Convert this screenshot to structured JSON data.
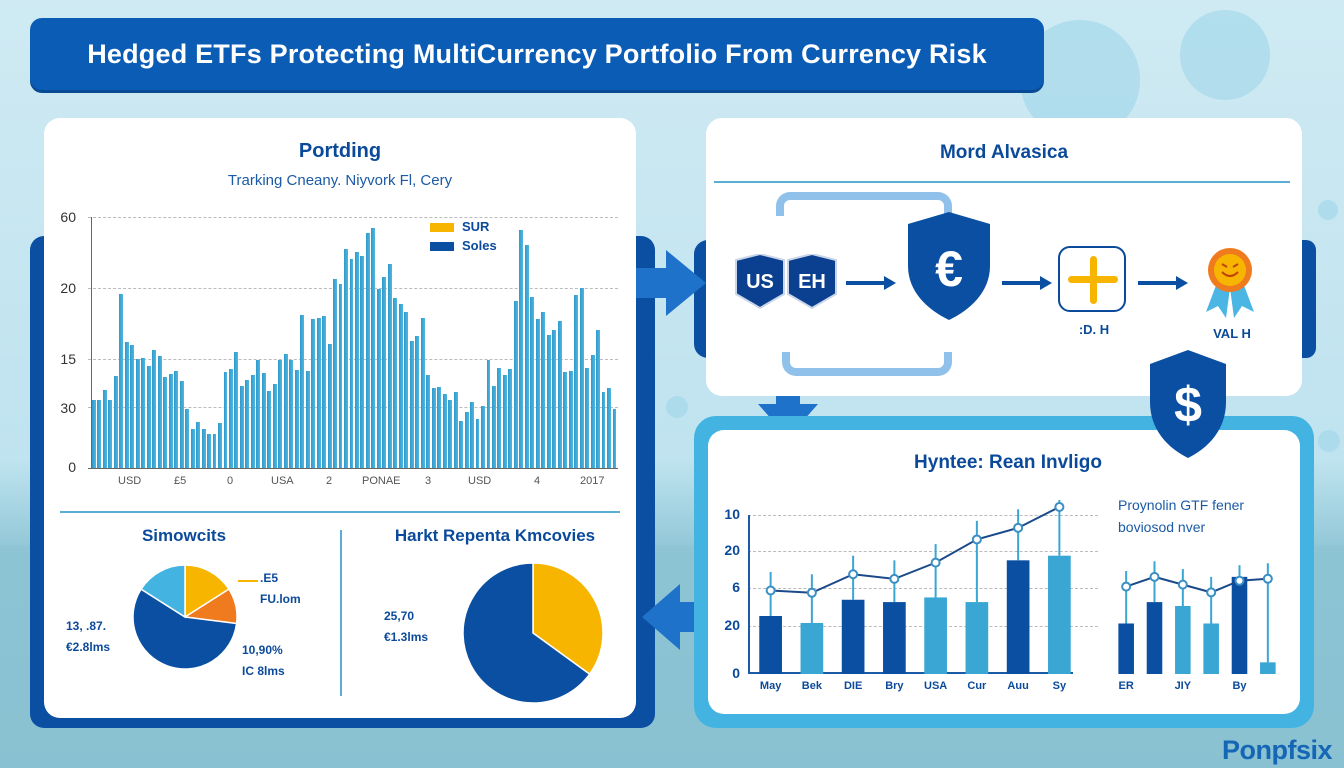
{
  "title": "Hedged ETFs Protecting MultiCurrency Portfolio From Currency Risk",
  "watermark": "Ponpfsix",
  "colors": {
    "primary_blue": "#0b4fa3",
    "bar_light_blue": "#3aa6d4",
    "light_blue": "#43b4e2",
    "yellow": "#f7b500",
    "orange": "#f07a1e",
    "panel_bg": "#ffffff"
  },
  "left_panel": {
    "title": "Portding",
    "subtitle": "Trarking Cneany. Niyvork Fl, Cery",
    "legend": [
      {
        "label": "SUR",
        "color": "#f7b500"
      },
      {
        "label": "Soles",
        "color": "#0b4fa3"
      }
    ],
    "pie1": {
      "title": "Simowcits",
      "label_right_top": [
        ".E5",
        "FU.lom"
      ],
      "label_left": [
        "13, .87.",
        "€2.8lms"
      ],
      "label_right_bottom": [
        "10,90%",
        "IC 8lms"
      ]
    },
    "pie2": {
      "title": "Harkt Repenta Kmcovies",
      "label_left": [
        "25,70",
        "€1.3lms"
      ]
    }
  },
  "top_right_panel": {
    "title": "Mord Alvasica",
    "flow": [
      {
        "type": "badge",
        "labels": [
          "US",
          "EH"
        ]
      },
      {
        "type": "shield",
        "symbol": "€"
      },
      {
        "type": "box",
        "symbol": "+",
        "label": ":D. H"
      },
      {
        "type": "medal",
        "label": "VAL H"
      }
    ],
    "shield_bottom_symbol": "$"
  },
  "bottom_right_panel": {
    "title": "Hyntee: Rean Invligo",
    "side_title": [
      "Proynolin GTF fener",
      "boviosod nver"
    ]
  },
  "chart_data": [
    {
      "type": "bar",
      "title": "Portding",
      "subtitle": "Trarking Cneany. Niyvork Fl, Cery",
      "ytick_labels": [
        "0",
        "30",
        "15",
        "20",
        "60"
      ],
      "xtick_labels": [
        "USD",
        "£5",
        "0",
        "USA",
        "2",
        "PONAE",
        "3",
        "USD",
        "4",
        "2017"
      ],
      "legend": [
        "SUR",
        "Soles"
      ],
      "grid": true,
      "values": [
        7.3,
        7.3,
        8.4,
        7.3,
        9.9,
        18.7,
        13.6,
        13.2,
        11.7,
        11.8,
        11.0,
        12.7,
        12.1,
        9.8,
        10.1,
        10.4,
        9.4,
        6.3,
        4.2,
        5.0,
        4.2,
        3.7,
        3.7,
        4.8,
        10.3,
        10.7,
        12.5,
        8.8,
        9.5,
        10.0,
        11.6,
        10.2,
        8.3,
        9.0,
        11.6,
        12.3,
        11.6,
        10.5,
        16.5,
        10.4,
        16.0,
        16.1,
        16.4,
        13.3,
        20.3,
        19.8,
        23.6,
        22.5,
        23.2,
        22.8,
        25.3,
        25.8,
        19.3,
        20.5,
        21.9,
        18.3,
        17.7,
        16.8,
        13.7,
        14.2,
        16.1,
        10.0,
        8.6,
        8.7,
        8.0,
        7.3,
        8.2,
        5.1,
        6.0,
        7.1,
        5.3,
        6.7,
        11.6,
        8.8,
        10.8,
        10.0,
        10.7,
        18.0,
        25.6,
        24.0,
        18.4,
        16.0,
        16.8,
        14.3,
        14.8,
        15.8,
        10.3,
        10.4,
        18.6,
        19.4,
        10.8,
        12.2,
        14.9,
        8.2,
        8.6,
        6.3
      ],
      "ylim": [
        0,
        27
      ],
      "note": "y-axis tick labels are non-monotonic as rendered; values estimated by relative bar height on a linear pixel scale"
    },
    {
      "type": "pie",
      "title": "Simowcits",
      "slices": [
        {
          "label": "13, .87. €2.8lms",
          "value": 57,
          "color": "#0b4fa3"
        },
        {
          "label": "Light segment",
          "value": 16,
          "color": "#43b4e2"
        },
        {
          "label": ".E5 FU.lom",
          "value": 16,
          "color": "#f7b500"
        },
        {
          "label": "10,90% IC 8lms",
          "value": 11,
          "color": "#f07a1e"
        }
      ]
    },
    {
      "type": "pie",
      "title": "Harkt Repenta Kmcovies",
      "slices": [
        {
          "label": "25,70 €1.3lms",
          "value": 65,
          "color": "#0b4fa3"
        },
        {
          "label": "Yellow segment",
          "value": 35,
          "color": "#f7b500"
        }
      ]
    },
    {
      "type": "bar",
      "title": "Hyntee: Rean Invligo",
      "categories": [
        "May",
        "Bek",
        "DIE",
        "Bry",
        "USA",
        "Cur",
        "Auu",
        "Sy"
      ],
      "ytick_labels": [
        "0",
        "20",
        "6",
        "20",
        "10"
      ],
      "series": [
        {
          "name": "bars",
          "values": [
            2.5,
            2.2,
            3.2,
            3.1,
            3.3,
            3.1,
            4.9,
            5.1
          ]
        },
        {
          "name": "line",
          "values": [
            3.6,
            3.5,
            4.3,
            4.1,
            4.8,
            5.8,
            6.3,
            7.2
          ]
        }
      ],
      "bar_colors": [
        "#0b4fa3",
        "#3aa6d4",
        "#0b4fa3",
        "#0b4fa3",
        "#3aa6d4",
        "#3aa6d4",
        "#0b4fa3",
        "#3aa6d4"
      ],
      "grid": true,
      "ylim": [
        0,
        7.5
      ]
    },
    {
      "type": "bar",
      "title": "Proynolin GTF fener boviosod nver",
      "categories": [
        "ER",
        "",
        "JIY",
        "",
        "By",
        ""
      ],
      "series": [
        {
          "name": "bars",
          "values": [
            2.6,
            3.7,
            3.5,
            2.6,
            5.0,
            0.6
          ]
        },
        {
          "name": "line",
          "values": [
            4.5,
            5.0,
            4.6,
            4.2,
            4.8,
            4.9
          ]
        }
      ],
      "bar_colors": [
        "#0b4fa3",
        "#0b4fa3",
        "#3aa6d4",
        "#3aa6d4",
        "#0b4fa3",
        "#3aa6d4"
      ],
      "ylim": [
        0,
        7
      ]
    }
  ]
}
